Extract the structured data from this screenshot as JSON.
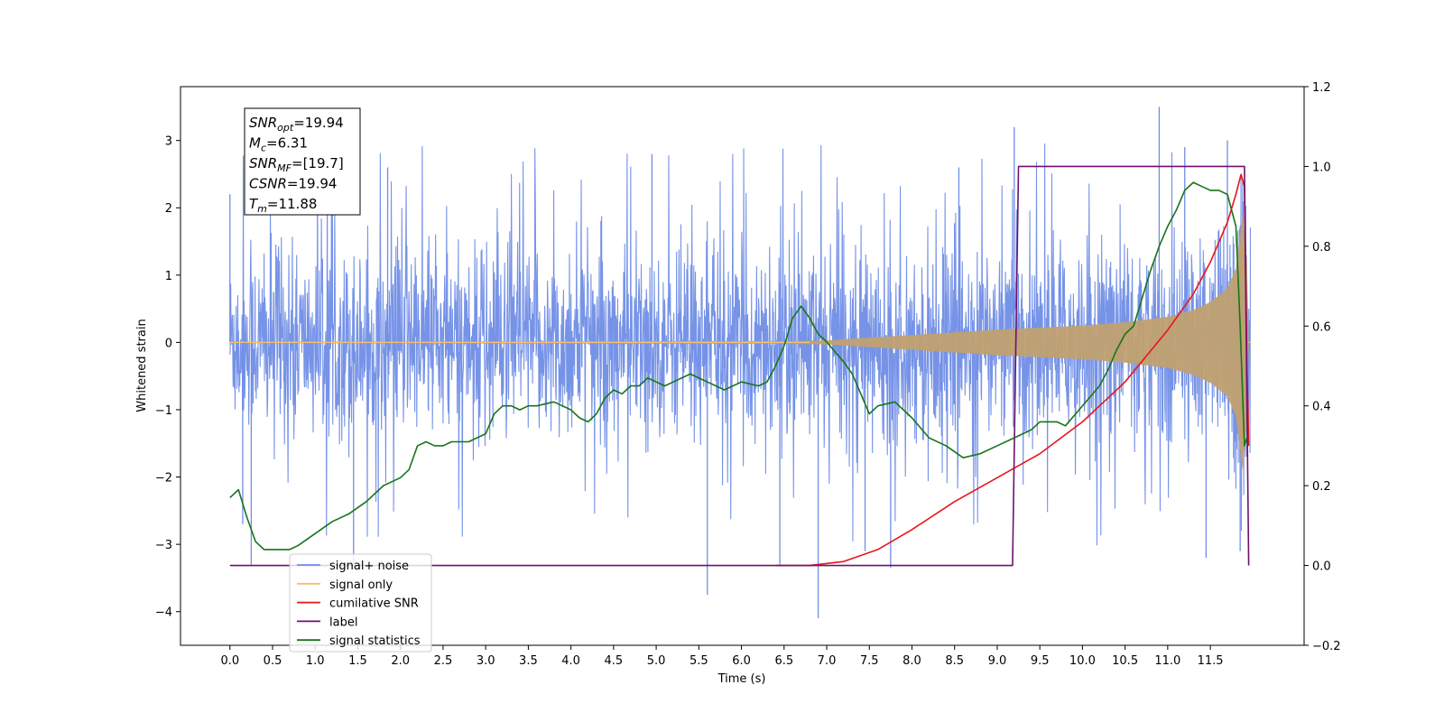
{
  "chart_data": {
    "type": "line",
    "xlabel": "Time (s)",
    "ylabel": "Whitened strain",
    "xlim": [
      -0.58,
      12.6
    ],
    "ylim": [
      -4.5,
      3.8
    ],
    "y2lim": [
      -0.2,
      1.2
    ],
    "x_ticks": [
      "0.0",
      "0.5",
      "1.0",
      "1.5",
      "2.0",
      "2.5",
      "3.0",
      "3.5",
      "4.0",
      "4.5",
      "5.0",
      "5.5",
      "6.0",
      "6.5",
      "7.0",
      "7.5",
      "8.0",
      "8.5",
      "9.0",
      "9.5",
      "10.0",
      "10.5",
      "11.0",
      "11.5"
    ],
    "y_ticks": [
      "3",
      "2",
      "1",
      "0",
      "−1",
      "−2",
      "−3",
      "−4"
    ],
    "y2_ticks": [
      "1.2",
      "1.0",
      "0.8",
      "0.6",
      "0.4",
      "0.2",
      "0.0",
      "−0.2"
    ],
    "info_box": {
      "lines": [
        {
          "sym": "SNR",
          "sub": "opt",
          "val": "=19.94"
        },
        {
          "sym": "M",
          "sub": "c",
          "val": "=6.31"
        },
        {
          "sym": "SNR",
          "sub": "MF",
          "val": "=[19.7]"
        },
        {
          "sym": "CSNR",
          "sub": "",
          "val": "=19.94"
        },
        {
          "sym": "T",
          "sub": "m",
          "val": "=11.88"
        }
      ]
    },
    "legend": {
      "placement": "lower-left",
      "items": [
        {
          "label": "signal+ noise",
          "color": "#6f8de6"
        },
        {
          "label": "signal only",
          "color": "#f5c06b"
        },
        {
          "label": "cumilative SNR",
          "color": "#e8151b"
        },
        {
          "label": "label",
          "color": "#6f106f"
        },
        {
          "label": "signal statistics",
          "color": "#17751a"
        }
      ]
    },
    "series": [
      {
        "name": "signal+ noise",
        "axis": "left",
        "color": "#6f8de6",
        "envelope_typical": 1.4,
        "spikes": [
          [
            0.0,
            2.2
          ],
          [
            0.15,
            -2.7
          ],
          [
            0.25,
            -3.3
          ],
          [
            1.45,
            -3.3
          ],
          [
            1.85,
            2.6
          ],
          [
            4.95,
            2.8
          ],
          [
            5.6,
            -3.75
          ],
          [
            6.45,
            -3.3
          ],
          [
            6.9,
            -4.1
          ],
          [
            7.45,
            -3.1
          ],
          [
            7.75,
            -3.35
          ],
          [
            8.55,
            2.6
          ],
          [
            9.2,
            3.2
          ],
          [
            10.9,
            3.5
          ],
          [
            11.2,
            2.9
          ],
          [
            11.45,
            -3.2
          ],
          [
            11.7,
            3.0
          ],
          [
            11.85,
            -3.1
          ]
        ]
      },
      {
        "name": "signal only",
        "axis": "left",
        "color": "#f5c06b",
        "envelope": [
          [
            0,
            0.01
          ],
          [
            6.5,
            0.02
          ],
          [
            7.0,
            0.03
          ],
          [
            7.5,
            0.07
          ],
          [
            8.0,
            0.11
          ],
          [
            8.5,
            0.15
          ],
          [
            9.0,
            0.19
          ],
          [
            9.5,
            0.22
          ],
          [
            10.0,
            0.25
          ],
          [
            10.5,
            0.3
          ],
          [
            11.0,
            0.38
          ],
          [
            11.3,
            0.48
          ],
          [
            11.5,
            0.6
          ],
          [
            11.7,
            0.8
          ],
          [
            11.8,
            1.1
          ],
          [
            11.88,
            1.9
          ],
          [
            11.93,
            1.2
          ],
          [
            11.95,
            0
          ]
        ]
      },
      {
        "name": "cumilative SNR",
        "axis": "right",
        "color": "#e8151b",
        "x": [
          6.4,
          6.8,
          7.2,
          7.6,
          8.0,
          8.5,
          9.0,
          9.5,
          10.0,
          10.5,
          11.0,
          11.3,
          11.5,
          11.6,
          11.7,
          11.8,
          11.86,
          11.9,
          11.93,
          11.95
        ],
        "y": [
          0.0,
          0.0,
          0.01,
          0.04,
          0.09,
          0.16,
          0.22,
          0.28,
          0.36,
          0.46,
          0.59,
          0.68,
          0.76,
          0.81,
          0.86,
          0.93,
          0.98,
          0.95,
          0.5,
          0.3
        ]
      },
      {
        "name": "label",
        "axis": "right",
        "color": "#6f106f",
        "x": [
          0.0,
          9.18,
          9.25,
          11.9,
          11.95
        ],
        "y": [
          0.0,
          0.0,
          1.0,
          1.0,
          0.0
        ]
      },
      {
        "name": "signal statistics",
        "axis": "right",
        "color": "#17751a",
        "x": [
          0.0,
          0.05,
          0.1,
          0.2,
          0.3,
          0.4,
          0.5,
          0.6,
          0.7,
          0.8,
          1.0,
          1.2,
          1.4,
          1.6,
          1.8,
          2.0,
          2.1,
          2.2,
          2.3,
          2.4,
          2.5,
          2.6,
          2.8,
          3.0,
          3.1,
          3.2,
          3.3,
          3.4,
          3.5,
          3.6,
          3.8,
          4.0,
          4.1,
          4.2,
          4.3,
          4.4,
          4.5,
          4.6,
          4.7,
          4.8,
          4.9,
          5.0,
          5.1,
          5.2,
          5.3,
          5.4,
          5.5,
          5.6,
          5.8,
          6.0,
          6.2,
          6.3,
          6.4,
          6.5,
          6.6,
          6.7,
          6.8,
          6.9,
          7.0,
          7.2,
          7.3,
          7.4,
          7.5,
          7.6,
          7.8,
          8.0,
          8.2,
          8.4,
          8.6,
          8.8,
          9.0,
          9.2,
          9.4,
          9.5,
          9.7,
          9.8,
          10.0,
          10.2,
          10.3,
          10.4,
          10.5,
          10.6,
          10.7,
          10.8,
          10.9,
          11.0,
          11.1,
          11.2,
          11.3,
          11.4,
          11.5,
          11.6,
          11.7,
          11.8,
          11.85,
          11.9,
          11.93
        ],
        "y": [
          0.17,
          0.18,
          0.19,
          0.12,
          0.06,
          0.04,
          0.04,
          0.04,
          0.04,
          0.05,
          0.08,
          0.11,
          0.13,
          0.16,
          0.2,
          0.22,
          0.24,
          0.3,
          0.31,
          0.3,
          0.3,
          0.31,
          0.31,
          0.33,
          0.38,
          0.4,
          0.4,
          0.39,
          0.4,
          0.4,
          0.41,
          0.39,
          0.37,
          0.36,
          0.38,
          0.42,
          0.44,
          0.43,
          0.45,
          0.45,
          0.47,
          0.46,
          0.45,
          0.46,
          0.47,
          0.48,
          0.47,
          0.46,
          0.44,
          0.46,
          0.45,
          0.46,
          0.5,
          0.55,
          0.62,
          0.65,
          0.62,
          0.58,
          0.56,
          0.51,
          0.48,
          0.43,
          0.38,
          0.4,
          0.41,
          0.37,
          0.32,
          0.3,
          0.27,
          0.28,
          0.3,
          0.32,
          0.34,
          0.36,
          0.36,
          0.35,
          0.4,
          0.45,
          0.49,
          0.54,
          0.58,
          0.6,
          0.67,
          0.74,
          0.8,
          0.85,
          0.89,
          0.94,
          0.96,
          0.95,
          0.94,
          0.94,
          0.93,
          0.85,
          0.6,
          0.3,
          0.32
        ]
      }
    ]
  }
}
